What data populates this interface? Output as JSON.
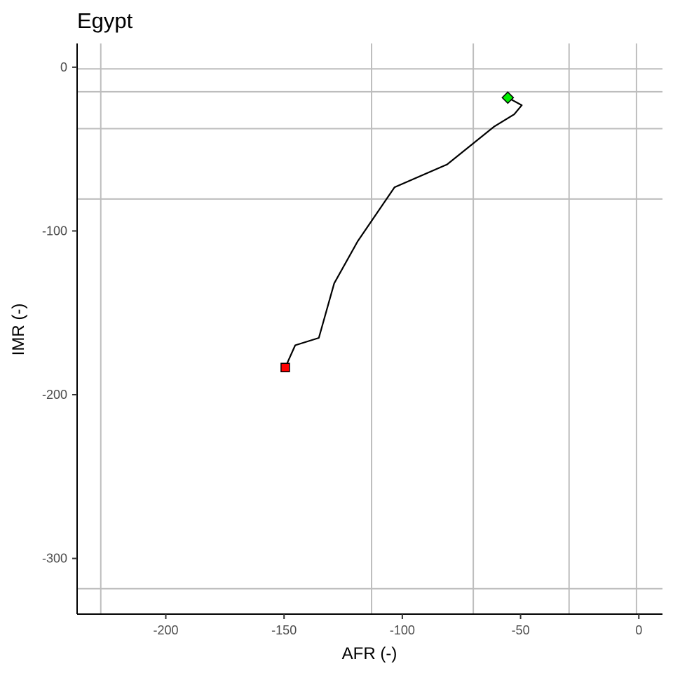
{
  "chart_data": {
    "type": "line",
    "title": "Egypt",
    "xlabel": "AFR (-)",
    "ylabel": "IMR (-)",
    "xlim": [
      -237.5,
      10
    ],
    "ylim": [
      -334,
      14.5
    ],
    "x_ticks": [
      -200,
      -150,
      -100,
      -50,
      0
    ],
    "y_ticks": [
      0,
      -100,
      -200,
      -300
    ],
    "x_tick_labels": [
      "-200",
      "-150",
      "-100",
      "-50",
      "0"
    ],
    "y_tick_labels": [
      "0",
      "-100",
      "-200",
      "-300"
    ],
    "grid_x": [
      -227.5,
      -113,
      -70,
      -29.5,
      -1
    ],
    "grid_y": [
      -1,
      -15,
      -37.5,
      -80.5,
      -318.5
    ],
    "grid": true,
    "legend": "none",
    "series": [
      {
        "x": [
          -149.5,
          -145.3,
          -135.3,
          -128.8,
          -118.9,
          -103.3,
          -81.1,
          -61.1,
          -52.7,
          -49.5,
          -55.4
        ],
        "y": [
          -183.4,
          -169.8,
          -165.3,
          -132.0,
          -106.4,
          -73.3,
          -59.4,
          -36.2,
          -28.8,
          -23.2,
          -18.6
        ]
      }
    ],
    "markers": [
      {
        "shape": "square",
        "color": "#ff0000",
        "x": -149.5,
        "y": -183.4
      },
      {
        "shape": "diamond",
        "color": "#00ee00",
        "x": -55.4,
        "y": -18.6
      }
    ]
  }
}
